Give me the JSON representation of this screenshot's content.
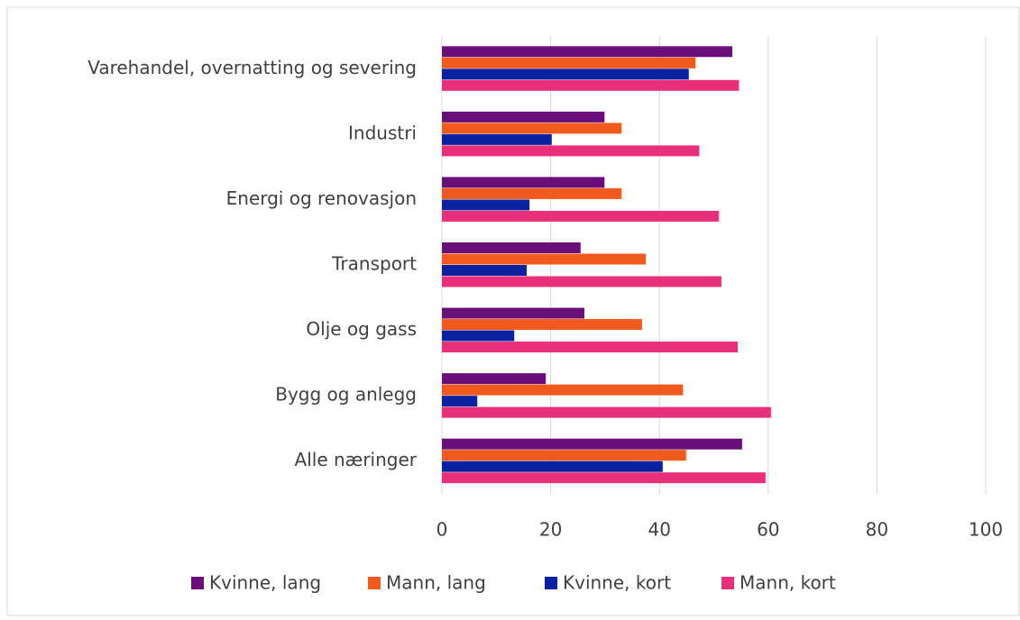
{
  "chart_data": {
    "type": "bar",
    "orientation": "horizontal",
    "categories": [
      "Varehandel, overnatting og severing",
      "Industri",
      "Energi og renovasjon",
      "Transport",
      "Olje og gass",
      "Bygg og anlegg",
      "Alle næringer"
    ],
    "series": [
      {
        "name": "Kvinne, lang",
        "color": "#6a0f7a",
        "values": [
          53.4,
          29.9,
          29.9,
          25.5,
          26.2,
          19.1,
          55.2
        ]
      },
      {
        "name": "Mann, lang",
        "color": "#f05a1e",
        "values": [
          46.6,
          33.0,
          33.0,
          37.5,
          36.8,
          44.3,
          44.9
        ]
      },
      {
        "name": "Kvinne, kort",
        "color": "#0a22a0",
        "values": [
          45.4,
          20.2,
          16.1,
          15.6,
          13.3,
          6.5,
          40.6
        ]
      },
      {
        "name": "Mann, kort",
        "color": "#e8307a",
        "values": [
          54.6,
          47.3,
          50.9,
          51.4,
          54.4,
          60.5,
          59.5
        ]
      }
    ],
    "xlim": [
      0,
      100
    ],
    "xticks": [
      0,
      20,
      40,
      60,
      80,
      100
    ],
    "grid": true,
    "legend": "bottom"
  }
}
